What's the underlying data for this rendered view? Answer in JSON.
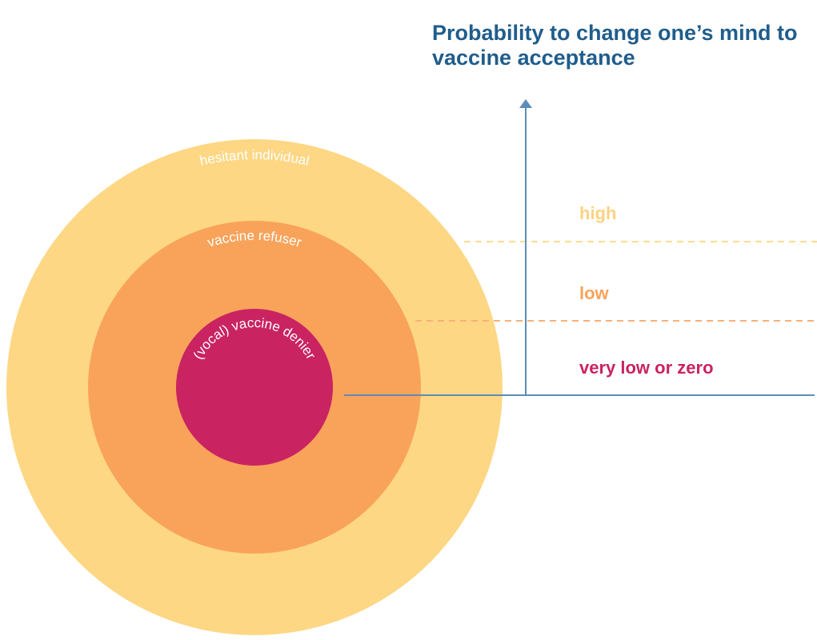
{
  "title": {
    "lines": [
      "Probability to change one’s mind to",
      "vaccine acceptance"
    ]
  },
  "rings": [
    {
      "label": "hesitant individual"
    },
    {
      "label": "vaccine refuser"
    },
    {
      "label": "(vocal) vaccine denier"
    }
  ],
  "levels": [
    {
      "label": "high"
    },
    {
      "label": "low"
    },
    {
      "label": "very low or zero"
    }
  ]
}
